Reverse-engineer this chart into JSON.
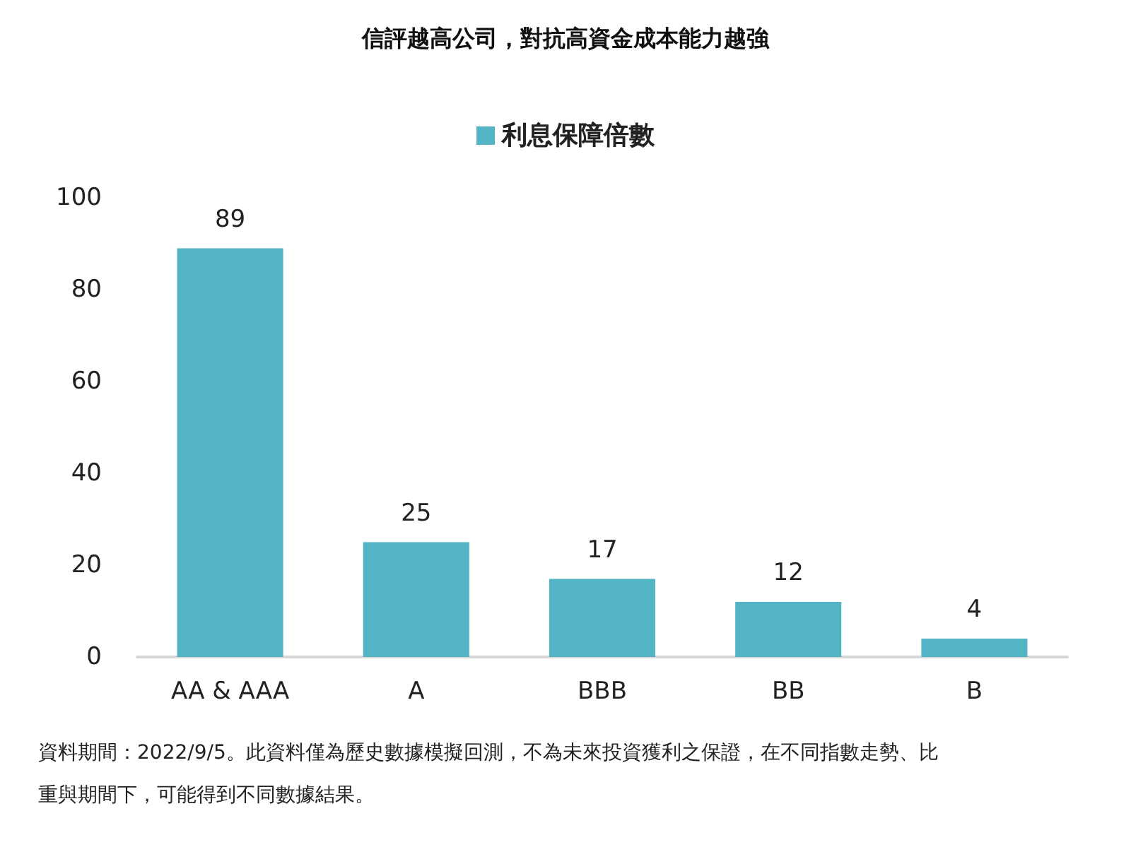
{
  "chart_data": {
    "type": "bar",
    "title": "信評越高公司，對抗高資金成本能力越強",
    "categories": [
      "AA & AAA",
      "A",
      "BBB",
      "BB",
      "B"
    ],
    "series": [
      {
        "name": "利息保障倍數",
        "color": "#52b4c4",
        "values": [
          89,
          25,
          17,
          12,
          4
        ]
      }
    ],
    "ylim": [
      0,
      100
    ],
    "yticks": [
      0,
      20,
      40,
      60,
      80,
      100
    ],
    "grid": false,
    "legend": "top",
    "data_labels": true,
    "annotations": [
      "資料期間：2022/9/5。此資料僅為歷史數據模擬回測，不為未來投資獲利之保證，在不同指數走勢、比重與期間下，可能得到不同數據結果。"
    ]
  }
}
